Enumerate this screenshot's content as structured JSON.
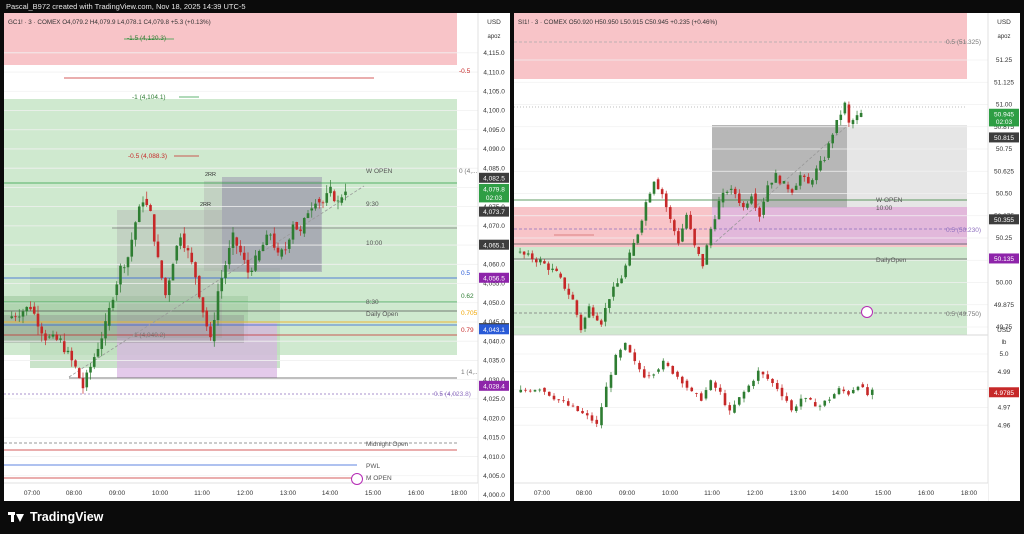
{
  "header": {
    "caption": "Pascal_B972 created with TradingView.com, Nov 18, 2025 14:39 UTC-5"
  },
  "footer": {
    "logo_text": "TradingView"
  },
  "colors": {
    "up": "#2e7d32",
    "down": "#c62828",
    "green_zone": "#cfe9cf",
    "red_zone": "#f8c4c8",
    "grey_box": "#aaaaaa",
    "purple_box": "#d8b4e2",
    "blue_line": "#2a5bd7"
  },
  "chart_data": [
    {
      "type": "candlestick",
      "symbol_line": "GC1! · 3 · COMEX   O4,079.2  H4,079.9  L4,078.1  C4,079.8  +5.3 (+0.13%)",
      "currency": "USD",
      "scale_mode": "apoz",
      "x_ticks": [
        "07:00",
        "08:00",
        "09:00",
        "10:00",
        "11:00",
        "12:00",
        "13:00",
        "14:00",
        "15:00",
        "16:00",
        "18:00"
      ],
      "y_ticks": [
        4115.0,
        4110.0,
        4105.0,
        4100.0,
        4095.0,
        4090.0,
        4085.0,
        4080.0,
        4075.0,
        4070.0,
        4065.0,
        4060.0,
        4055.0,
        4050.0,
        4045.0,
        4040.0,
        4035.0,
        4030.0,
        4025.0,
        4020.0,
        4015.0,
        4010.0,
        4005.0,
        4000.0
      ],
      "ylim": [
        3998.5,
        4123.5
      ],
      "badges": [
        {
          "text": "4,082.5",
          "price": 4082.5,
          "color": "#3d3d3d"
        },
        {
          "text": "4,079.8",
          "price": 4079.6,
          "color": "#2e9e44"
        },
        {
          "text": "02:03",
          "price": 4077.4,
          "color": "#2e9e44"
        },
        {
          "text": "4,073.7",
          "price": 4073.7,
          "color": "#3d3d3d"
        },
        {
          "text": "4,065.1",
          "price": 4065.1,
          "color": "#3d3d3d"
        },
        {
          "text": "4,056.5",
          "price": 4056.5,
          "color": "#8e24aa"
        },
        {
          "text": "4,043.4",
          "price": 4043.4,
          "color": "#3d3d3d"
        },
        {
          "text": "4,043.1",
          "price": 4043.1,
          "color": "#2a5bd7"
        },
        {
          "text": "4,028.4",
          "price": 4028.4,
          "color": "#8e24aa"
        }
      ],
      "labels": [
        {
          "text": "-1.5 (4,120.3)",
          "price": 4120.3,
          "color": "#2e7d32"
        },
        {
          "text": "-0.5",
          "price": 4112.0,
          "color": "#c62828"
        },
        {
          "text": "-1 (4,104.1)",
          "price": 4104.1,
          "color": "#2e7d32"
        },
        {
          "text": "-0.5 (4,088.3)",
          "price": 4088.3,
          "color": "#c62828"
        },
        {
          "text": "W OPEN",
          "price": 4083.6,
          "color": "#555555"
        },
        {
          "text": "0 (4,...",
          "price": 4083.6,
          "color": "#777777"
        },
        {
          "text": "2RR",
          "price": 4082.2,
          "color": "#333333"
        },
        {
          "text": "2RR",
          "price": 4074.8,
          "color": "#333333"
        },
        {
          "text": "9:30",
          "price": 4074.2,
          "color": "#555555"
        },
        {
          "text": "10:00",
          "price": 4065.2,
          "color": "#555555"
        },
        {
          "text": "0.5",
          "price": 4056.8,
          "color": "#2a5bd7"
        },
        {
          "text": "0.62",
          "price": 4049.6,
          "color": "#2e7d32"
        },
        {
          "text": "8:30",
          "price": 4047.6,
          "color": "#555555"
        },
        {
          "text": "Daily Open",
          "price": 4044.9,
          "color": "#555555"
        },
        {
          "text": "0.705",
          "price": 4045.2,
          "color": "#f0a500"
        },
        {
          "text": "0.79",
          "price": 4041.3,
          "color": "#c62828"
        },
        {
          "text": "1 (4,040.2)",
          "price": 4040.2,
          "color": "#777777"
        },
        {
          "text": "1 (4,...",
          "price": 4031.0,
          "color": "#777777"
        },
        {
          "text": "0.5 (4,023.8)",
          "price": 4023.8,
          "color": "#8e6fbf"
        },
        {
          "text": "Midnight Open",
          "price": 4009.6,
          "color": "#555555"
        },
        {
          "text": "PWL",
          "price": 4004.0,
          "color": "#555555"
        },
        {
          "text": "M OPEN",
          "price": 4000.6,
          "color": "#555555"
        }
      ],
      "candle_path": [
        [
          0,
          4046
        ],
        [
          6,
          4049
        ],
        [
          10,
          4041
        ],
        [
          14,
          4040
        ],
        [
          18,
          4033
        ],
        [
          20,
          4028
        ],
        [
          23,
          4036
        ],
        [
          26,
          4044
        ],
        [
          28,
          4052
        ],
        [
          30,
          4059
        ],
        [
          32,
          4062
        ],
        [
          34,
          4071
        ],
        [
          36,
          4077
        ],
        [
          38,
          4073
        ],
        [
          40,
          4061
        ],
        [
          42,
          4052
        ],
        [
          44,
          4061
        ],
        [
          46,
          4068
        ],
        [
          48,
          4063
        ],
        [
          50,
          4057
        ],
        [
          52,
          4048
        ],
        [
          54,
          4040
        ],
        [
          56,
          4053
        ],
        [
          58,
          4060
        ],
        [
          60,
          4067
        ],
        [
          62,
          4063
        ],
        [
          64,
          4058
        ],
        [
          66,
          4061
        ],
        [
          68,
          4065
        ],
        [
          70,
          4068
        ],
        [
          72,
          4062
        ],
        [
          74,
          4064
        ],
        [
          76,
          4071
        ],
        [
          78,
          4068
        ],
        [
          80,
          4074
        ],
        [
          82,
          4077
        ],
        [
          84,
          4076
        ],
        [
          86,
          4079
        ],
        [
          88,
          4076
        ],
        [
          89,
          4078
        ],
        [
          90,
          4079.8
        ]
      ]
    },
    {
      "type": "candlestick",
      "symbol_line": "SI1! · 3 · COMEX   O50.920  H50.950  L50.915  C50.945  +0.235 (+0.46%)",
      "currency": "USD",
      "scale_mode": "apoz",
      "x_ticks": [
        "07:00",
        "08:00",
        "09:00",
        "10:00",
        "11:00",
        "12:00",
        "13:00",
        "14:00",
        "15:00",
        "16:00",
        "18:00"
      ],
      "y_ticks": [
        51.25,
        51.125,
        51.0,
        50.875,
        50.75,
        50.625,
        50.5,
        50.375,
        50.25,
        50.125,
        50.0,
        49.875,
        49.75
      ],
      "ylim": [
        49.56,
        51.43
      ],
      "badges": [
        {
          "text": "50.945",
          "price": 50.948,
          "color": "#2e9e44"
        },
        {
          "text": "02:03",
          "price": 50.905,
          "color": "#2e9e44"
        },
        {
          "text": "50.815",
          "price": 50.815,
          "color": "#3d3d3d"
        },
        {
          "text": "50.355",
          "price": 50.355,
          "color": "#3d3d3d"
        },
        {
          "text": "50.135",
          "price": 50.135,
          "color": "#8e24aa"
        }
      ],
      "labels": [
        {
          "text": "0.5 (51.325)",
          "price": 51.325,
          "color": "#777777"
        },
        {
          "text": "W OPEN",
          "price": 50.393,
          "color": "#555555"
        },
        {
          "text": "10:00",
          "price": 50.355,
          "color": "#555555"
        },
        {
          "text": "0.5 (50.230)",
          "price": 50.23,
          "color": "#8e6fbf"
        },
        {
          "text": "DailyOpen",
          "price": 50.05,
          "color": "#555555"
        },
        {
          "text": "0.5 (49.750)",
          "price": 49.75,
          "color": "#777777"
        }
      ],
      "candle_path": [
        [
          0,
          50.17
        ],
        [
          6,
          50.12
        ],
        [
          10,
          50.05
        ],
        [
          14,
          49.9
        ],
        [
          16,
          49.74
        ],
        [
          18,
          49.86
        ],
        [
          21,
          49.78
        ],
        [
          23,
          49.92
        ],
        [
          26,
          50.03
        ],
        [
          28,
          50.15
        ],
        [
          30,
          50.28
        ],
        [
          32,
          50.45
        ],
        [
          34,
          50.58
        ],
        [
          36,
          50.5
        ],
        [
          38,
          50.35
        ],
        [
          40,
          50.23
        ],
        [
          42,
          50.38
        ],
        [
          44,
          50.2
        ],
        [
          46,
          50.1
        ],
        [
          48,
          50.3
        ],
        [
          50,
          50.45
        ],
        [
          52,
          50.52
        ],
        [
          54,
          50.5
        ],
        [
          56,
          50.42
        ],
        [
          58,
          50.5
        ],
        [
          60,
          50.38
        ],
        [
          62,
          50.55
        ],
        [
          64,
          50.6
        ],
        [
          66,
          50.55
        ],
        [
          68,
          50.52
        ],
        [
          70,
          50.6
        ],
        [
          72,
          50.55
        ],
        [
          74,
          50.63
        ],
        [
          76,
          50.7
        ],
        [
          78,
          50.84
        ],
        [
          80,
          50.95
        ],
        [
          81,
          51.0
        ],
        [
          82,
          50.89
        ],
        [
          84,
          50.93
        ],
        [
          85,
          50.945
        ]
      ]
    },
    {
      "type": "candlestick",
      "currency": "USD",
      "scale_mode": "lb",
      "y_ticks": [
        5.0,
        4.99,
        4.98,
        4.97,
        4.96
      ],
      "ylim": [
        4.9535,
        5.0093
      ],
      "badges": [
        {
          "text": "4.9785",
          "price": 4.9785,
          "color": "#c62828"
        }
      ],
      "candle_path": [
        [
          0,
          4.9785
        ],
        [
          5,
          4.981
        ],
        [
          9,
          4.974
        ],
        [
          13,
          4.968
        ],
        [
          16,
          4.963
        ],
        [
          17,
          4.96
        ],
        [
          19,
          4.981
        ],
        [
          21,
          4.998
        ],
        [
          23,
          5.005
        ],
        [
          25,
          4.995
        ],
        [
          27,
          4.988
        ],
        [
          29,
          4.99
        ],
        [
          31,
          4.995
        ],
        [
          33,
          4.99
        ],
        [
          35,
          4.985
        ],
        [
          37,
          4.978
        ],
        [
          39,
          4.975
        ],
        [
          41,
          4.984
        ],
        [
          43,
          4.978
        ],
        [
          45,
          4.967
        ],
        [
          47,
          4.975
        ],
        [
          49,
          4.982
        ],
        [
          51,
          4.99
        ],
        [
          53,
          4.986
        ],
        [
          55,
          4.981
        ],
        [
          57,
          4.974
        ],
        [
          58,
          4.968
        ],
        [
          60,
          4.975
        ],
        [
          62,
          4.973
        ],
        [
          64,
          4.971
        ],
        [
          66,
          4.975
        ],
        [
          68,
          4.98
        ],
        [
          70,
          4.978
        ],
        [
          72,
          4.983
        ],
        [
          74,
          4.977
        ],
        [
          75,
          4.9785
        ]
      ]
    }
  ]
}
